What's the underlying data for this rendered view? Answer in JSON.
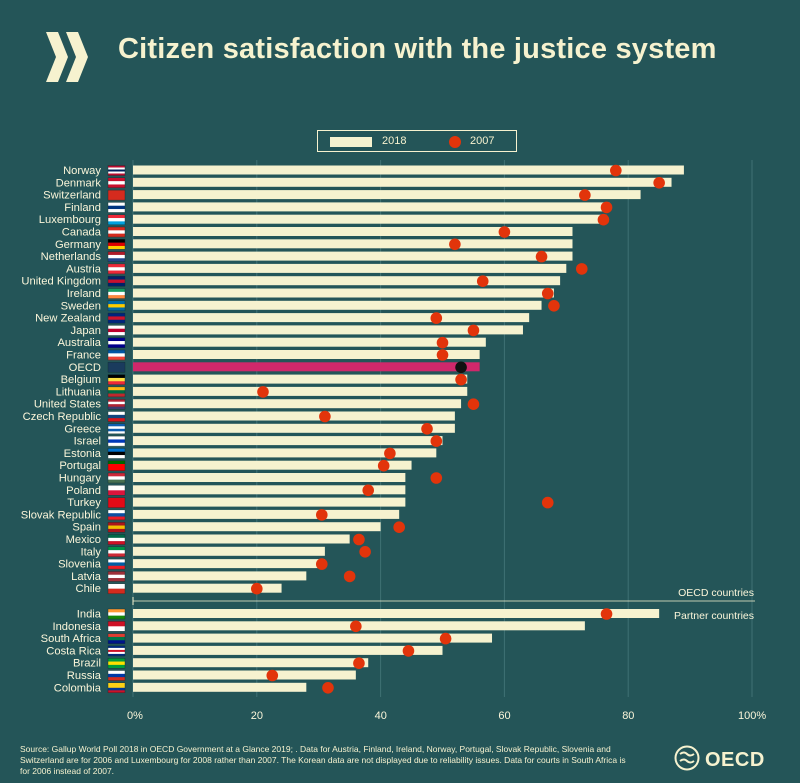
{
  "title": "Citizen satisfaction with the justice system",
  "legend": {
    "series_2018": "2018",
    "series_2007": "2007"
  },
  "colors": {
    "background": "#245558",
    "bar": "#f6f2cf",
    "oecd_bar": "#d0286b",
    "dot": "#e2340b",
    "oecd_dot": "#111111",
    "text": "#fbf6da"
  },
  "group_labels": {
    "oecd": "OECD countries",
    "partner": "Partner countries"
  },
  "footer": {
    "source": "Source: Gallup World Poll 2018  in OECD Government at a Glance 2019; . Data for Austria, Finland, Ireland, Norway, Portugal, Slovak Republic, Slovenia and Switzerland are for 2006 and Luxembourg for 2008 rather than 2007. The Korean data are not displayed due to reliability issues.  Data for courts in South Africa is for 2006 instead of 2007."
  },
  "brand": {
    "name": "OECD"
  },
  "chart_data": {
    "type": "bar",
    "orientation": "horizontal",
    "title": "Citizen satisfaction with the justice system",
    "xlim": [
      0,
      100
    ],
    "x_ticks": [
      "0%",
      "20",
      "40",
      "60",
      "80",
      "100%"
    ],
    "x_tick_values": [
      0,
      20,
      40,
      60,
      80,
      100
    ],
    "series": [
      {
        "name": "2018",
        "mark": "bar"
      },
      {
        "name": "2007",
        "mark": "dot"
      }
    ],
    "groups": [
      {
        "name": "OECD countries",
        "rows": [
          {
            "country": "Norway",
            "flag": "norway-flag",
            "v2018": 89,
            "v2007": 78
          },
          {
            "country": "Denmark",
            "flag": "denmark-flag",
            "v2018": 87,
            "v2007": 85
          },
          {
            "country": "Switzerland",
            "flag": "switzerland-flag",
            "v2018": 82,
            "v2007": 73
          },
          {
            "country": "Finland",
            "flag": "finland-flag",
            "v2018": 77,
            "v2007": 76.5
          },
          {
            "country": "Luxembourg",
            "flag": "luxembourg-flag",
            "v2018": 76.5,
            "v2007": 76
          },
          {
            "country": "Canada",
            "flag": "canada-flag",
            "v2018": 71,
            "v2007": 60
          },
          {
            "country": "Germany",
            "flag": "germany-flag",
            "v2018": 71,
            "v2007": 52
          },
          {
            "country": "Netherlands",
            "flag": "netherlands-flag",
            "v2018": 71,
            "v2007": 66
          },
          {
            "country": "Austria",
            "flag": "austria-flag",
            "v2018": 70,
            "v2007": 72.5
          },
          {
            "country": "United Kingdom",
            "flag": "uk-flag",
            "v2018": 69,
            "v2007": 56.5
          },
          {
            "country": "Ireland",
            "flag": "ireland-flag",
            "v2018": 68,
            "v2007": 67
          },
          {
            "country": "Sweden",
            "flag": "sweden-flag",
            "v2018": 66,
            "v2007": 68
          },
          {
            "country": "New Zealand",
            "flag": "new-zealand-flag",
            "v2018": 64,
            "v2007": 49
          },
          {
            "country": "Japan",
            "flag": "japan-flag",
            "v2018": 63,
            "v2007": 55
          },
          {
            "country": "Australia",
            "flag": "australia-flag",
            "v2018": 57,
            "v2007": 50
          },
          {
            "country": "France",
            "flag": "france-flag",
            "v2018": 56,
            "v2007": 50
          },
          {
            "country": "OECD",
            "flag": "oecd-flag",
            "v2018": 56,
            "v2007": 53,
            "highlight": true
          },
          {
            "country": "Belgium",
            "flag": "belgium-flag",
            "v2018": 54,
            "v2007": 53
          },
          {
            "country": "Lithuania",
            "flag": "lithuania-flag",
            "v2018": 54,
            "v2007": 21
          },
          {
            "country": "United States",
            "flag": "us-flag",
            "v2018": 53,
            "v2007": 55
          },
          {
            "country": "Czech Republic",
            "flag": "czech-flag",
            "v2018": 52,
            "v2007": 31
          },
          {
            "country": "Greece",
            "flag": "greece-flag",
            "v2018": 52,
            "v2007": 47.5
          },
          {
            "country": "Israel",
            "flag": "israel-flag",
            "v2018": 50,
            "v2007": 49
          },
          {
            "country": "Estonia",
            "flag": "estonia-flag",
            "v2018": 49,
            "v2007": 41.5
          },
          {
            "country": "Portugal",
            "flag": "portugal-flag",
            "v2018": 45,
            "v2007": 40.5
          },
          {
            "country": "Hungary",
            "flag": "hungary-flag",
            "v2018": 44,
            "v2007": 49
          },
          {
            "country": "Poland",
            "flag": "poland-flag",
            "v2018": 44,
            "v2007": 38
          },
          {
            "country": "Turkey",
            "flag": "turkey-flag",
            "v2018": 44,
            "v2007": 67
          },
          {
            "country": "Slovak Republic",
            "flag": "slovakia-flag",
            "v2018": 43,
            "v2007": 30.5
          },
          {
            "country": "Spain",
            "flag": "spain-flag",
            "v2018": 40,
            "v2007": 43
          },
          {
            "country": "Mexico",
            "flag": "mexico-flag",
            "v2018": 35,
            "v2007": 36.5
          },
          {
            "country": "Italy",
            "flag": "italy-flag",
            "v2018": 31,
            "v2007": 37.5
          },
          {
            "country": "Slovenia",
            "flag": "slovenia-flag",
            "v2018": 31,
            "v2007": 30.5
          },
          {
            "country": "Latvia",
            "flag": "latvia-flag",
            "v2018": 28,
            "v2007": 35
          },
          {
            "country": "Chile",
            "flag": "chile-flag",
            "v2018": 24,
            "v2007": 20
          }
        ]
      },
      {
        "name": "Partner countries",
        "rows": [
          {
            "country": "India",
            "flag": "india-flag",
            "v2018": 85,
            "v2007": 76.5
          },
          {
            "country": "Indonesia",
            "flag": "indonesia-flag",
            "v2018": 73,
            "v2007": 36
          },
          {
            "country": "South Africa",
            "flag": "south-africa-flag",
            "v2018": 58,
            "v2007": 50.5
          },
          {
            "country": "Costa Rica",
            "flag": "costa-rica-flag",
            "v2018": 50,
            "v2007": 44.5
          },
          {
            "country": "Brazil",
            "flag": "brazil-flag",
            "v2018": 38,
            "v2007": 36.5
          },
          {
            "country": "Russia",
            "flag": "russia-flag",
            "v2018": 36,
            "v2007": 22.5
          },
          {
            "country": "Colombia",
            "flag": "colombia-flag",
            "v2018": 28,
            "v2007": 31.5
          }
        ]
      }
    ]
  }
}
